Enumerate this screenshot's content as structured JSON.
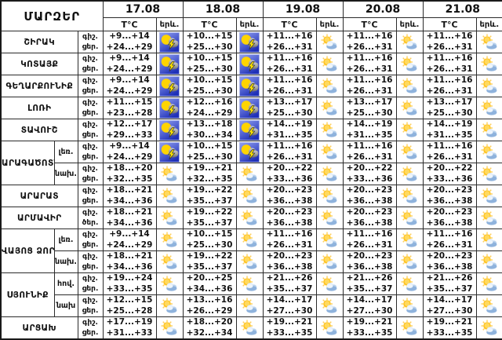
{
  "header": {
    "regions_label": "ՄԱՐԶԵՐ",
    "temp_label": "T°C",
    "phenomenon_label": "երև.",
    "dates": [
      "17.08",
      "18.08",
      "19.08",
      "20.08",
      "21.08"
    ]
  },
  "colors": {
    "thunder_sky_top": "#93a2f2",
    "thunder_sky_bottom": "#2031b8",
    "sun_yellow": "#ffd400",
    "lightning_yellow": "#ffe400",
    "cloud_gray_top": "#cccccc",
    "cloud_gray_bottom": "#696969",
    "cloud_blue": "#8fb3dd"
  },
  "regions": [
    {
      "name": "ՇԻՐԱԿ",
      "subrows": [
        {
          "sub": null,
          "night_label": "գիշ.",
          "day_label": "ցեր.",
          "forecast": [
            {
              "night": "+9...+14",
              "day": "+24...+29",
              "icon": "thunderstorm"
            },
            {
              "night": "+10...+15",
              "day": "+25...+30",
              "icon": "thunderstorm"
            },
            {
              "night": "+11...+16",
              "day": "+26...+31",
              "icon": "partly-cloudy"
            },
            {
              "night": "+11...+16",
              "day": "+26...+31",
              "icon": "partly-cloudy"
            },
            {
              "night": "+11...+16",
              "day": "+26...+31",
              "icon": "partly-cloudy"
            }
          ]
        }
      ]
    },
    {
      "name": "ԿՈՏԱՅՔ",
      "subrows": [
        {
          "sub": null,
          "night_label": "գիշ.",
          "day_label": "ցեր.",
          "forecast": [
            {
              "night": "+9...+14",
              "day": "+24...+29",
              "icon": "thunderstorm"
            },
            {
              "night": "+10...+15",
              "day": "+25...+30",
              "icon": "thunderstorm"
            },
            {
              "night": "+11...+16",
              "day": "+26...+31",
              "icon": "partly-cloudy"
            },
            {
              "night": "+11...+16",
              "day": "+26...+31",
              "icon": "partly-cloudy"
            },
            {
              "night": "+11...+16",
              "day": "+26...+31",
              "icon": "partly-cloudy"
            }
          ]
        }
      ]
    },
    {
      "name": "ԳԵՂԱՐՔՈՒՆԻՔ",
      "subrows": [
        {
          "sub": null,
          "night_label": "գիշ.",
          "day_label": "ցեր.",
          "forecast": [
            {
              "night": "+9...+14",
              "day": "+24...+29",
              "icon": "thunderstorm"
            },
            {
              "night": "+10...+15",
              "day": "+25...+30",
              "icon": "thunderstorm"
            },
            {
              "night": "+11...+16",
              "day": "+26...+31",
              "icon": "partly-cloudy"
            },
            {
              "night": "+11...+16",
              "day": "+26...+31",
              "icon": "partly-cloudy"
            },
            {
              "night": "+11...+16",
              "day": "+26...+31",
              "icon": "partly-cloudy"
            }
          ]
        }
      ]
    },
    {
      "name": "ԼՈՌԻ",
      "subrows": [
        {
          "sub": null,
          "night_label": "գիշ.",
          "day_label": "ցեր.",
          "forecast": [
            {
              "night": "+11...+15",
              "day": "+23...+28",
              "icon": "thunderstorm"
            },
            {
              "night": "+12...+16",
              "day": "+24...+29",
              "icon": "thunderstorm"
            },
            {
              "night": "+13...+17",
              "day": "+25...+30",
              "icon": "partly-cloudy"
            },
            {
              "night": "+13...+17",
              "day": "+25...+30",
              "icon": "partly-cloudy"
            },
            {
              "night": "+13...+17",
              "day": "+25...+30",
              "icon": "partly-cloudy"
            }
          ]
        }
      ]
    },
    {
      "name": "ՏԱՎՈՒՇ",
      "subrows": [
        {
          "sub": null,
          "night_label": "գիշ.",
          "day_label": "ցեր.",
          "forecast": [
            {
              "night": "+12...+17",
              "day": "+29...+33",
              "icon": "thunderstorm"
            },
            {
              "night": "+13...+18",
              "day": "+30...+34",
              "icon": "thunderstorm"
            },
            {
              "night": "+14...+19",
              "day": "+31...+35",
              "icon": "partly-cloudy"
            },
            {
              "night": "+14...+19",
              "day": "+31...+35",
              "icon": "partly-cloudy"
            },
            {
              "night": "+14...+19",
              "day": "+31...+35",
              "icon": "partly-cloudy"
            }
          ]
        }
      ]
    },
    {
      "name": "ԱՐԱԳԱԾՈՏՆ",
      "subrows": [
        {
          "sub": "լեռ.",
          "night_label": "գիշ.",
          "day_label": "ցեր.",
          "forecast": [
            {
              "night": "+9...+14",
              "day": "+24...+29",
              "icon": "thunderstorm"
            },
            {
              "night": "+10...+15",
              "day": "+25...+30",
              "icon": "thunderstorm"
            },
            {
              "night": "+11...+16",
              "day": "+26...+31",
              "icon": "partly-cloudy"
            },
            {
              "night": "+11...+16",
              "day": "+26...+31",
              "icon": "partly-cloudy"
            },
            {
              "night": "+11...+16",
              "day": "+26...+31",
              "icon": "partly-cloudy"
            }
          ]
        },
        {
          "sub": "նախ.",
          "night_label": "գիշ.",
          "day_label": "ցեր.",
          "forecast": [
            {
              "night": "+18...+20",
              "day": "+32...+35",
              "icon": "partly-cloudy"
            },
            {
              "night": "+19...+21",
              "day": "+32...+35",
              "icon": "partly-cloudy"
            },
            {
              "night": "+20...+22",
              "day": "+33...+36",
              "icon": "partly-cloudy"
            },
            {
              "night": "+20...+22",
              "day": "+33...+36",
              "icon": "partly-cloudy"
            },
            {
              "night": "+20...+22",
              "day": "+33...+36",
              "icon": "partly-cloudy"
            }
          ]
        }
      ]
    },
    {
      "name": "ԱՐԱՐԱՏ",
      "subrows": [
        {
          "sub": null,
          "night_label": "գիշ.",
          "day_label": "ցեր.",
          "forecast": [
            {
              "night": "+18...+21",
              "day": "+34...+36",
              "icon": "partly-cloudy"
            },
            {
              "night": "+19...+22",
              "day": "+35...+37",
              "icon": "partly-cloudy"
            },
            {
              "night": "+20...+23",
              "day": "+36...+38",
              "icon": "partly-cloudy"
            },
            {
              "night": "+20...+23",
              "day": "+36...+38",
              "icon": "partly-cloudy"
            },
            {
              "night": "+20...+23",
              "day": "+36...+38",
              "icon": "partly-cloudy"
            }
          ]
        }
      ]
    },
    {
      "name": "ԱՐՄԱՎԻՐ",
      "subrows": [
        {
          "sub": null,
          "night_label": "գիշ.",
          "day_label": "ծեր.",
          "forecast": [
            {
              "night": "+18...+21",
              "day": "+34...+36",
              "icon": "partly-cloudy"
            },
            {
              "night": "+19...+22",
              "day": "+35...+37",
              "icon": "partly-cloudy"
            },
            {
              "night": "+20...+23",
              "day": "+36...+38",
              "icon": "partly-cloudy"
            },
            {
              "night": "+20...+23",
              "day": "+36...+38",
              "icon": "partly-cloudy"
            },
            {
              "night": "+20...+23",
              "day": "+36...+38",
              "icon": "partly-cloudy"
            }
          ]
        }
      ]
    },
    {
      "name": "ՎԱՅՈՑ ՁՈՐ",
      "subrows": [
        {
          "sub": "լեռ.",
          "night_label": "գիշ.",
          "day_label": "ցեր.",
          "forecast": [
            {
              "night": "+9...+14",
              "day": "+24...+29",
              "icon": "partly-cloudy"
            },
            {
              "night": "+10...+15",
              "day": "+25...+30",
              "icon": "partly-cloudy"
            },
            {
              "night": "+11...+16",
              "day": "+26...+31",
              "icon": "partly-cloudy"
            },
            {
              "night": "+11...+16",
              "day": "+26...+31",
              "icon": "partly-cloudy"
            },
            {
              "night": "+11...+16",
              "day": "+26...+31",
              "icon": "partly-cloudy"
            }
          ]
        },
        {
          "sub": "նախ.",
          "night_label": "գիշ.",
          "day_label": "ցեր.",
          "forecast": [
            {
              "night": "+18...+21",
              "day": "+34...+36",
              "icon": "partly-cloudy"
            },
            {
              "night": "+19...+22",
              "day": "+35...+37",
              "icon": "partly-cloudy"
            },
            {
              "night": "+20...+23",
              "day": "+36...+38",
              "icon": "partly-cloudy"
            },
            {
              "night": "+20...+23",
              "day": "+36...+38",
              "icon": "partly-cloudy"
            },
            {
              "night": "+20...+23",
              "day": "+36...+38",
              "icon": "partly-cloudy"
            }
          ]
        }
      ]
    },
    {
      "name": "ՍՅՈՒՆԻՔ",
      "subrows": [
        {
          "sub": "հով.",
          "night_label": "գիշ.",
          "day_label": "ցեր.",
          "forecast": [
            {
              "night": "+19...+24",
              "day": "+33...+35",
              "icon": "partly-cloudy"
            },
            {
              "night": "+20...+25",
              "day": "+34...+36",
              "icon": "partly-cloudy"
            },
            {
              "night": "+21...+26",
              "day": "+35...+37",
              "icon": "partly-cloudy"
            },
            {
              "night": "+21...+26",
              "day": "+35...+37",
              "icon": "partly-cloudy"
            },
            {
              "night": "+21...+26",
              "day": "+35...+37",
              "icon": "partly-cloudy"
            }
          ]
        },
        {
          "sub": "նախ",
          "night_label": "գիշ.",
          "day_label": "ցեր.",
          "forecast": [
            {
              "night": "+12...+15",
              "day": "+25...+28",
              "icon": "partly-cloudy"
            },
            {
              "night": "+13...+16",
              "day": "+26...+29",
              "icon": "partly-cloudy"
            },
            {
              "night": "+14...+17",
              "day": "+27...+30",
              "icon": "partly-cloudy"
            },
            {
              "night": "+14...+17",
              "day": "+27...+30",
              "icon": "partly-cloudy"
            },
            {
              "night": "+14...+17",
              "day": "+27...+30",
              "icon": "partly-cloudy"
            }
          ]
        }
      ]
    },
    {
      "name": "ԱՐՑԱԽ",
      "subrows": [
        {
          "sub": null,
          "night_label": "գիշ.",
          "day_label": "ցեր.",
          "forecast": [
            {
              "night": "+17...+19",
              "day": "+31...+33",
              "icon": "partly-cloudy"
            },
            {
              "night": "+18...+20",
              "day": "+32...+34",
              "icon": "partly-cloudy"
            },
            {
              "night": "+19...+21",
              "day": "+33...+35",
              "icon": "partly-cloudy"
            },
            {
              "night": "+19...+21",
              "day": "+33...+35",
              "icon": "partly-cloudy"
            },
            {
              "night": "+19...+21",
              "day": "+33...+35",
              "icon": "partly-cloudy"
            }
          ]
        }
      ]
    }
  ]
}
